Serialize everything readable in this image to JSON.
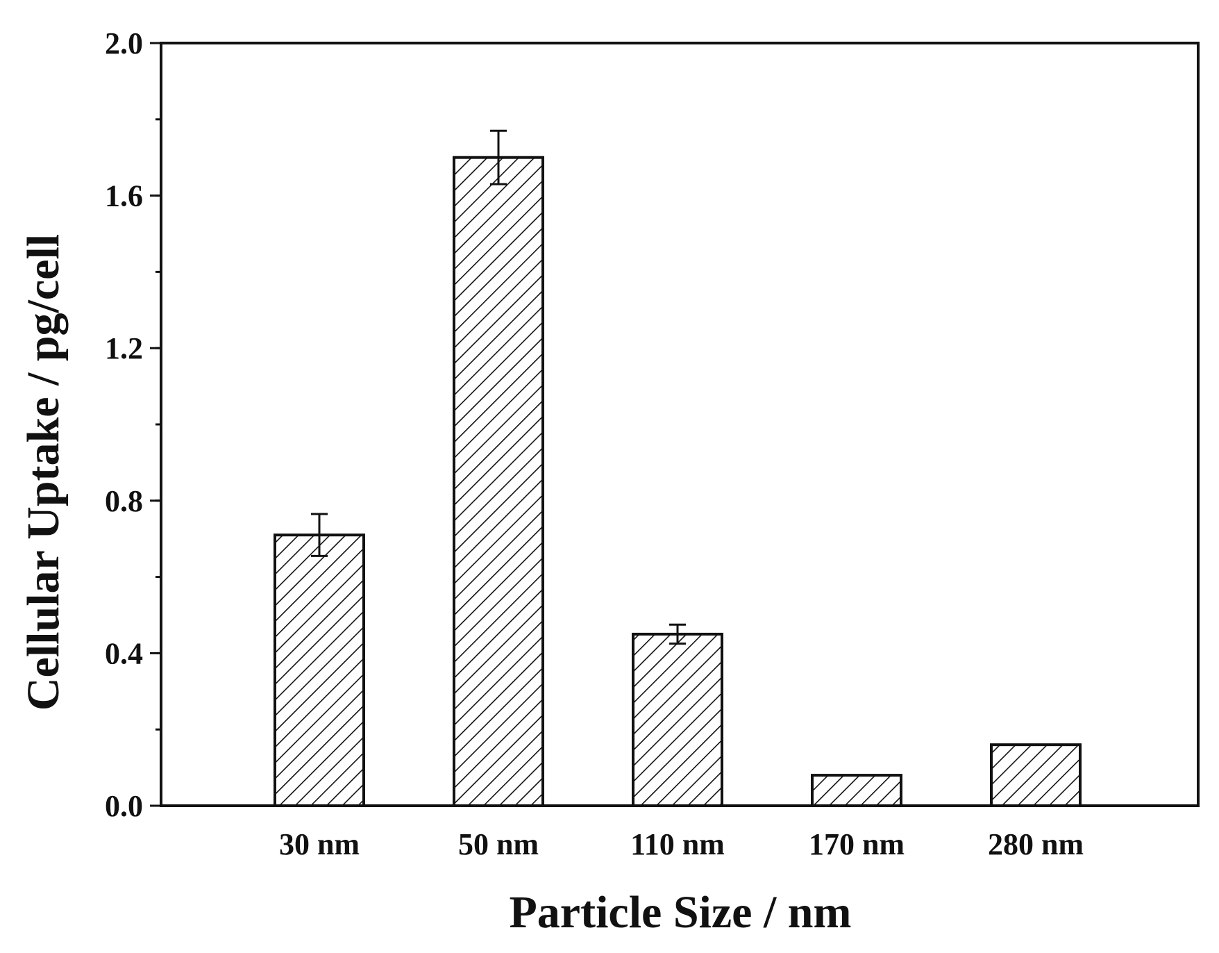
{
  "chart_data": {
    "type": "bar",
    "categories": [
      "30 nm",
      "50 nm",
      "110 nm",
      "170 nm",
      "280 nm"
    ],
    "values": [
      0.71,
      1.7,
      0.45,
      0.08,
      0.16
    ],
    "errors": [
      0.055,
      0.07,
      0.025,
      0,
      0
    ],
    "xlabel": "Particle Size / nm",
    "ylabel": "Cellular Uptake / pg/cell",
    "ylim": [
      0,
      2.0
    ],
    "yticks": [
      "0.0",
      "0.4",
      "0.8",
      "1.2",
      "1.6",
      "2.0"
    ],
    "ytick_values": [
      0,
      0.4,
      0.8,
      1.2,
      1.6,
      2.0
    ],
    "minor_ytick_step": 0.2,
    "bar_pattern": "diagonal-hatch",
    "grid": false,
    "legend": false,
    "colors": {
      "axis": "#111111",
      "bar_fill": "#ffffff",
      "hatch": "#111111"
    }
  }
}
